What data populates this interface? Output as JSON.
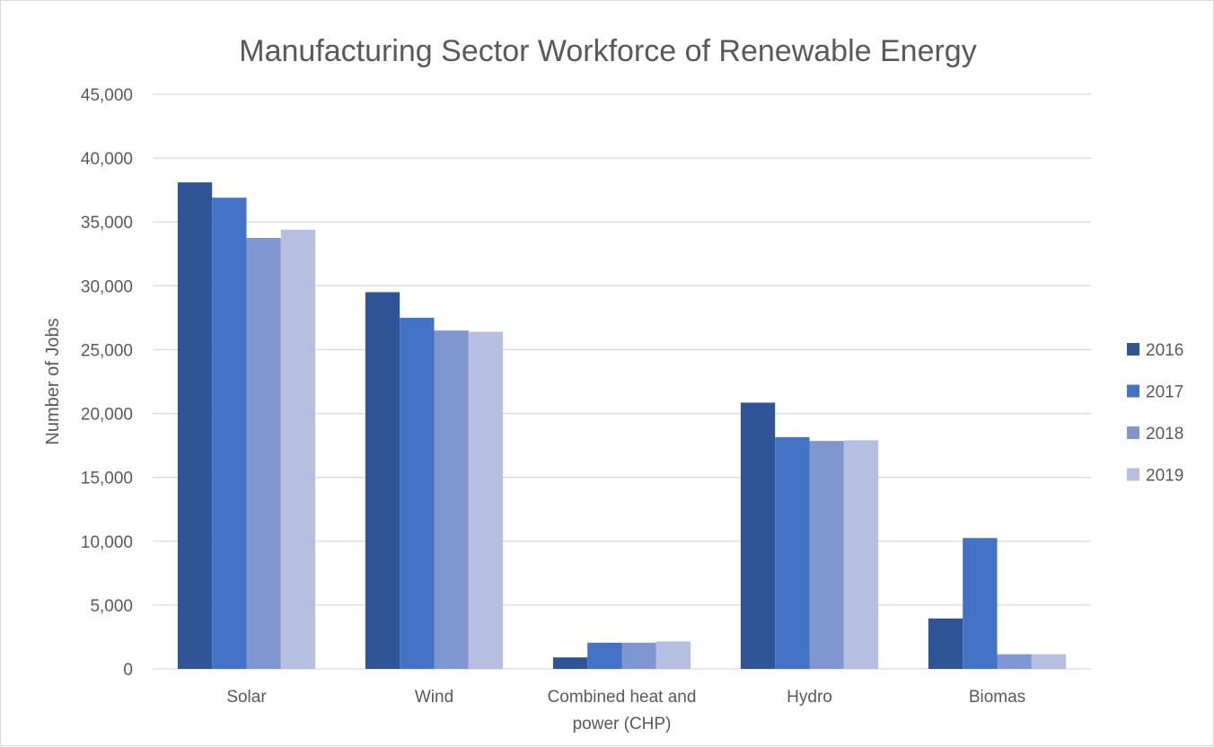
{
  "chart_data": {
    "type": "bar",
    "title": "Manufacturing Sector Workforce of Renewable Energy",
    "xlabel": "",
    "ylabel": "Number of Jobs",
    "categories": [
      [
        "Solar"
      ],
      [
        "Wind"
      ],
      [
        "Combined heat and",
        "power (CHP)"
      ],
      [
        "Hydro"
      ],
      [
        "Biomas"
      ]
    ],
    "ylim": [
      0,
      45000
    ],
    "yticks": [
      0,
      5000,
      10000,
      15000,
      20000,
      25000,
      30000,
      35000,
      40000,
      45000
    ],
    "ytick_labels": [
      "0",
      "5,000",
      "10,000",
      "15,000",
      "20,000",
      "25,000",
      "30,000",
      "35,000",
      "40,000",
      "45,000"
    ],
    "grid": true,
    "legend_position": "right",
    "series": [
      {
        "name": "2016",
        "color": "#2f5597",
        "values": [
          38100,
          29500,
          900,
          20850,
          3950
        ]
      },
      {
        "name": "2017",
        "color": "#4472c4",
        "values": [
          36900,
          27500,
          2050,
          18150,
          10250
        ]
      },
      {
        "name": "2018",
        "color": "#7f96d0",
        "values": [
          33750,
          26500,
          2050,
          17850,
          1150
        ]
      },
      {
        "name": "2019",
        "color": "#b4bfe1",
        "values": [
          34400,
          26400,
          2150,
          17900,
          1150
        ]
      }
    ]
  }
}
